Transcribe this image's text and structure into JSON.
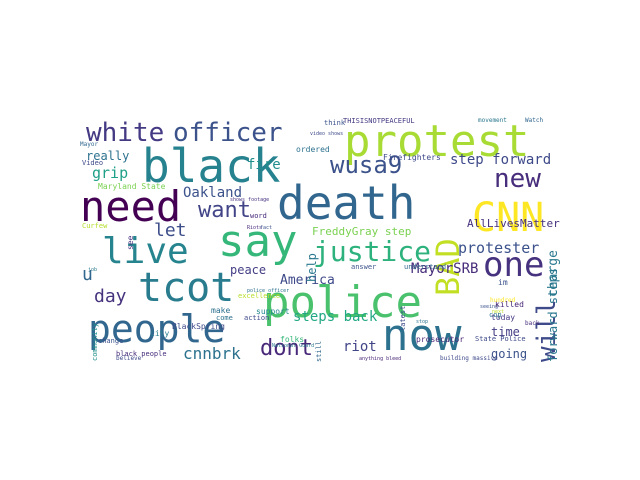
{
  "cloud": {
    "words": [
      {
        "text": "police",
        "color": "#4ac16d"
      },
      {
        "text": "death",
        "color": "#31668e"
      },
      {
        "text": "say",
        "color": "#35b779"
      },
      {
        "text": "protest",
        "color": "#a8db34"
      },
      {
        "text": "black",
        "color": "#26828e"
      },
      {
        "text": "need",
        "color": "#440154"
      },
      {
        "text": "CNN",
        "color": "#fde725"
      },
      {
        "text": "now",
        "color": "#2c728e"
      },
      {
        "text": "people",
        "color": "#31668e"
      },
      {
        "text": "tcot",
        "color": "#287c8e"
      },
      {
        "text": "live",
        "color": "#25848e"
      },
      {
        "text": "officer",
        "color": "#3b528b"
      },
      {
        "text": "white",
        "color": "#443983"
      },
      {
        "text": "one",
        "color": "#46327e"
      },
      {
        "text": "BAD",
        "color": "#c2df23"
      },
      {
        "text": "justice",
        "color": "#2db27d"
      },
      {
        "text": "will",
        "color": "#3e4a89"
      },
      {
        "text": "new",
        "color": "#472d7b"
      },
      {
        "text": "want",
        "color": "#414487"
      },
      {
        "text": "wusa9",
        "color": "#3b528b"
      },
      {
        "text": "dont",
        "color": "#482878"
      },
      {
        "text": "cnnbrk",
        "color": "#2c728e"
      },
      {
        "text": "let",
        "color": "#3d4e8a"
      },
      {
        "text": "day",
        "color": "#46337e"
      },
      {
        "text": "u",
        "color": "#31668e"
      },
      {
        "text": "protester",
        "color": "#3b528b"
      },
      {
        "text": "grip",
        "color": "#1fa088"
      },
      {
        "text": "really",
        "color": "#2c728e"
      },
      {
        "text": "fire",
        "color": "#218f8d"
      },
      {
        "text": "Oakland",
        "color": "#3b528b"
      },
      {
        "text": "step forward",
        "color": "#3e4989"
      },
      {
        "text": "charge",
        "color": "#2a788e"
      },
      {
        "text": "MayorSRB",
        "color": "#472c7a"
      },
      {
        "text": "riot",
        "color": "#414487"
      },
      {
        "text": "steps back",
        "color": "#22a884"
      },
      {
        "text": "peace",
        "color": "#433e85"
      },
      {
        "text": "America",
        "color": "#3e4989"
      },
      {
        "text": "FreddyGray step",
        "color": "#7ad151"
      },
      {
        "text": "forward steps",
        "color": "#2a788e"
      },
      {
        "text": "time",
        "color": "#433e85"
      },
      {
        "text": "going",
        "color": "#3b528b"
      },
      {
        "text": "AllLivesMatter",
        "color": "#46307e"
      },
      {
        "text": "help",
        "color": "#2a788e"
      },
      {
        "text": "city",
        "color": "#287d8e"
      },
      {
        "text": "make",
        "color": "#2d708e"
      },
      {
        "text": "BlackSpring",
        "color": "#3e4989"
      },
      {
        "text": "support",
        "color": "#23898e"
      },
      {
        "text": "Firefighters",
        "color": "#3e4989"
      },
      {
        "text": "ordered",
        "color": "#2c728e"
      },
      {
        "text": "THISISNOTPEACEFUL",
        "color": "#443a83"
      },
      {
        "text": "think",
        "color": "#3b528b"
      },
      {
        "text": "movement",
        "color": "#2a788e"
      },
      {
        "text": "Watch",
        "color": "#31668e"
      },
      {
        "text": "come",
        "color": "#2c728e"
      },
      {
        "text": "action",
        "color": "#3e4989"
      },
      {
        "text": "killed",
        "color": "#482475"
      },
      {
        "text": "today",
        "color": "#443983"
      },
      {
        "text": "State Police",
        "color": "#3e4989"
      },
      {
        "text": "prosecutor",
        "color": "#482576"
      },
      {
        "text": "black people",
        "color": "#472d7b"
      },
      {
        "text": "change",
        "color": "#3b528b"
      },
      {
        "text": "Maryland State",
        "color": "#7ad151"
      },
      {
        "text": "Curfew",
        "color": "#b5de2b"
      },
      {
        "text": "community",
        "color": "#21918c"
      },
      {
        "text": "Video",
        "color": "#3e4989"
      },
      {
        "text": "Mayor",
        "color": "#31688e"
      },
      {
        "text": "im",
        "color": "#3b528b"
      },
      {
        "text": "cop",
        "color": "#2c728e"
      },
      {
        "text": "latest",
        "color": "#3e4989"
      },
      {
        "text": "word",
        "color": "#482878"
      },
      {
        "text": "see",
        "color": "#46337e"
      },
      {
        "text": "answer",
        "color": "#3b528b"
      },
      {
        "text": "understand",
        "color": "#31688e"
      },
      {
        "text": "excellence",
        "color": "#b8de29"
      },
      {
        "text": "folks",
        "color": "#35b779"
      },
      {
        "text": "hundred",
        "color": "#fde725"
      },
      {
        "text": "believe",
        "color": "#3e4989"
      },
      {
        "text": "building massive",
        "color": "#3e4989"
      },
      {
        "text": "National Guard",
        "color": "#2a788e"
      },
      {
        "text": "still",
        "color": "#31688e"
      },
      {
        "text": "back",
        "color": "#472d7b"
      },
      {
        "text": "seeing",
        "color": "#3b528b"
      },
      {
        "text": "stop",
        "color": "#2c728e"
      },
      {
        "text": "Riots",
        "color": "#482878"
      },
      {
        "text": "video shows",
        "color": "#3e4989"
      },
      {
        "text": "next",
        "color": "#c2df23"
      },
      {
        "text": "job",
        "color": "#2a788e"
      },
      {
        "text": "fact",
        "color": "#3b528b"
      },
      {
        "text": "police officer",
        "color": "#2c728e"
      },
      {
        "text": "shows footage",
        "color": "#46307e"
      },
      {
        "text": "anything bleed",
        "color": "#482475"
      }
    ]
  }
}
